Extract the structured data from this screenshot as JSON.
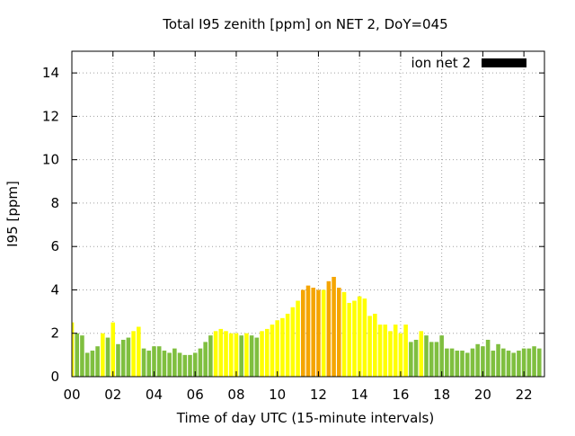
{
  "chart_data": {
    "type": "bar",
    "title": "Total I95 zenith [ppm] on NET 2, DoY=045",
    "xlabel": "Time of day UTC (15-minute intervals)",
    "ylabel": "I95 [ppm]",
    "ylim": [
      0,
      15
    ],
    "y_ticks": [
      0,
      2,
      4,
      6,
      8,
      10,
      12,
      14
    ],
    "xlim": [
      0,
      23.0
    ],
    "x_tick_values": [
      0,
      2,
      4,
      6,
      8,
      10,
      12,
      14,
      16,
      18,
      20,
      22
    ],
    "x_tick_labels": [
      "00",
      "02",
      "04",
      "06",
      "08",
      "10",
      "12",
      "14",
      "16",
      "18",
      "20",
      "22"
    ],
    "grid": true,
    "legend_position": "top-right",
    "legend": [
      {
        "name": "ion net 2",
        "color": "#000000"
      }
    ],
    "bar_interval_hours": 0.25,
    "colors": {
      "green": "#7fbf3f",
      "yellow": "#ffff00",
      "orange": "#f5a500"
    },
    "values": [
      2.5,
      2.0,
      1.9,
      1.1,
      1.2,
      1.4,
      2.0,
      1.8,
      2.5,
      1.5,
      1.7,
      1.8,
      2.1,
      2.3,
      1.3,
      1.2,
      1.4,
      1.4,
      1.2,
      1.1,
      1.3,
      1.1,
      1.0,
      1.0,
      1.1,
      1.3,
      1.6,
      1.9,
      2.1,
      2.2,
      2.1,
      2.0,
      2.0,
      1.9,
      2.0,
      1.9,
      1.8,
      2.1,
      2.2,
      2.4,
      2.6,
      2.7,
      2.9,
      3.2,
      3.5,
      4.0,
      4.2,
      4.1,
      4.0,
      4.0,
      4.4,
      4.6,
      4.1,
      3.9,
      3.4,
      3.5,
      3.7,
      3.6,
      2.8,
      2.9,
      2.4,
      2.4,
      2.1,
      2.4,
      2.0,
      2.4,
      1.6,
      1.7,
      2.1,
      1.9,
      1.6,
      1.6,
      1.9,
      1.3,
      1.3,
      1.2,
      1.2,
      1.1,
      1.3,
      1.5,
      1.4,
      1.7,
      1.2,
      1.5,
      1.3,
      1.2,
      1.1,
      1.2,
      1.3,
      1.3,
      1.4,
      1.3
    ],
    "bar_colors": [
      "yellow",
      "green",
      "green",
      "green",
      "green",
      "green",
      "yellow",
      "green",
      "yellow",
      "green",
      "green",
      "green",
      "yellow",
      "yellow",
      "green",
      "green",
      "green",
      "green",
      "green",
      "green",
      "green",
      "green",
      "green",
      "green",
      "green",
      "green",
      "green",
      "green",
      "yellow",
      "yellow",
      "yellow",
      "yellow",
      "yellow",
      "green",
      "yellow",
      "green",
      "green",
      "yellow",
      "yellow",
      "yellow",
      "yellow",
      "yellow",
      "yellow",
      "yellow",
      "yellow",
      "orange",
      "orange",
      "orange",
      "orange",
      "yellow",
      "orange",
      "orange",
      "orange",
      "yellow",
      "yellow",
      "yellow",
      "yellow",
      "yellow",
      "yellow",
      "yellow",
      "yellow",
      "yellow",
      "yellow",
      "yellow",
      "yellow",
      "yellow",
      "green",
      "green",
      "yellow",
      "green",
      "green",
      "green",
      "green",
      "green",
      "green",
      "green",
      "green",
      "green",
      "green",
      "green",
      "green",
      "green",
      "green",
      "green",
      "green",
      "green",
      "green",
      "green",
      "green",
      "green",
      "green",
      "green"
    ]
  }
}
